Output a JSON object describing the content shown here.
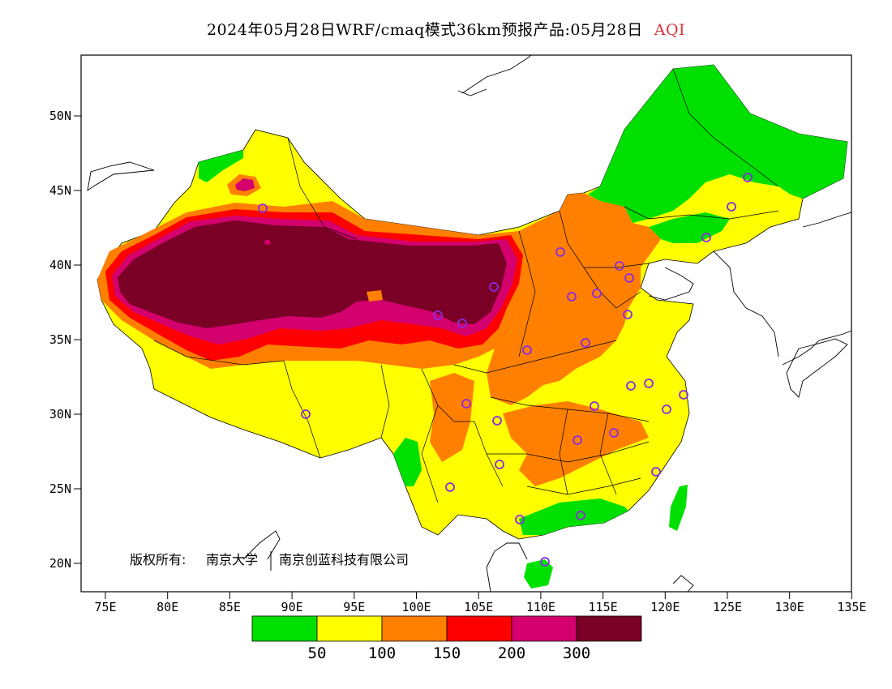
{
  "title": {
    "main": "2024年05月28日WRF/cmaq模式36km预报产品:05月28日",
    "variable": "AQI"
  },
  "axes": {
    "y_ticks": [
      "50N",
      "45N",
      "40N",
      "35N",
      "30N",
      "25N",
      "20N"
    ],
    "x_ticks": [
      "75E",
      "80E",
      "85E",
      "90E",
      "95E",
      "100E",
      "105E",
      "110E",
      "115E",
      "120E",
      "125E",
      "130E",
      "135E"
    ],
    "lon_range": [
      73,
      135
    ],
    "lat_range": [
      18,
      54
    ]
  },
  "copyright": {
    "label": "版权所有:",
    "org1": "南京大学",
    "org2": "南京创蓝科技有限公司"
  },
  "legend": {
    "colors": [
      "#00e000",
      "#ffff00",
      "#ff8000",
      "#ff0000",
      "#d4006e",
      "#7a0026"
    ],
    "labels": [
      "50",
      "100",
      "150",
      "200",
      "300"
    ]
  },
  "colors": {
    "good": "#00e000",
    "moderate": "#ffff00",
    "usg": "#ff8000",
    "unhealthy": "#ff0000",
    "very_unhealthy": "#d4006e",
    "hazardous": "#7a0026",
    "station_marker": "#8a2be2"
  }
}
